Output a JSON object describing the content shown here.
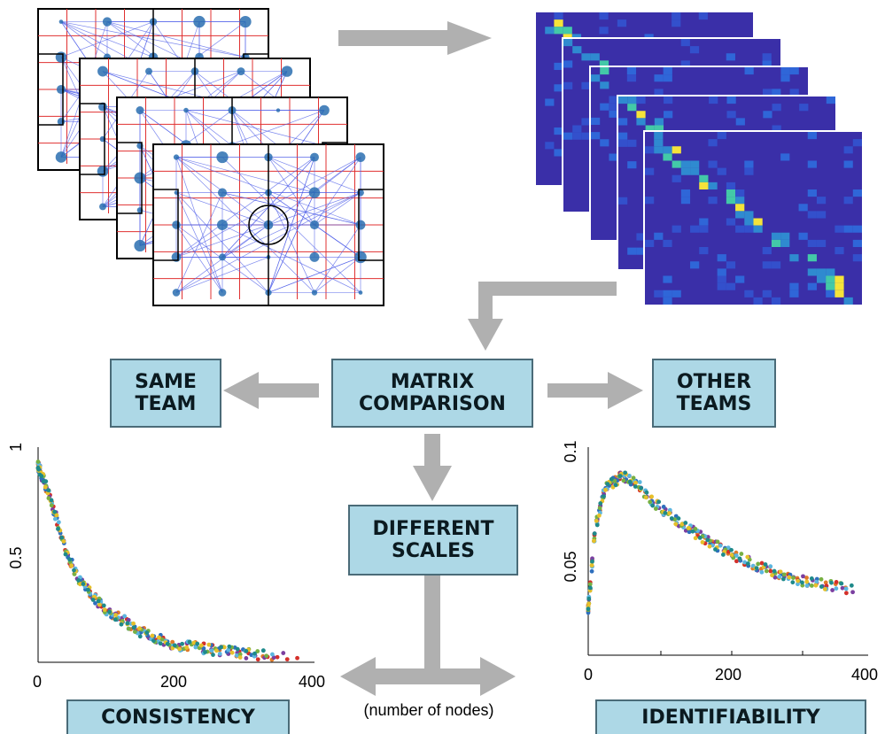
{
  "boxes": {
    "matrix_comparison": [
      "MATRIX",
      "COMPARISON"
    ],
    "same_team": [
      "SAME",
      "TEAM"
    ],
    "other_teams": [
      "OTHER",
      "TEAMS"
    ],
    "different_scales": [
      "DIFFERENT",
      "SCALES"
    ],
    "consistency": "CONSISTENCY",
    "identifiability": "IDENTIFIABILITY"
  },
  "nodes_label": "(number of nodes)",
  "colors": {
    "box_fill": "#add8e6",
    "arrow": "#b0b0b0",
    "network_edge": "#4f5fe8",
    "grid_red": "#e03030",
    "heat_background": "#3a2fa8",
    "series": [
      "#e07b2a",
      "#d4302a",
      "#7b3fa0",
      "#2e6fbd",
      "#5bb6e0",
      "#77b043",
      "#e6c02a",
      "#1f8a8a"
    ]
  },
  "chart_data": [
    {
      "type": "scatter",
      "name": "consistency-plot",
      "xlabel": "",
      "ylabel": "",
      "xlim": [
        0,
        400
      ],
      "ylim": [
        0.05,
        1.0
      ],
      "x_ticks": [
        "0",
        "200",
        "400"
      ],
      "y_ticks": [
        "0.5",
        "1"
      ],
      "trend": [
        {
          "x": 0,
          "y": 0.95
        },
        {
          "x": 20,
          "y": 0.78
        },
        {
          "x": 40,
          "y": 0.56
        },
        {
          "x": 60,
          "y": 0.43
        },
        {
          "x": 80,
          "y": 0.35
        },
        {
          "x": 100,
          "y": 0.29
        },
        {
          "x": 150,
          "y": 0.19
        },
        {
          "x": 200,
          "y": 0.13
        },
        {
          "x": 250,
          "y": 0.11
        },
        {
          "x": 300,
          "y": 0.09
        },
        {
          "x": 350,
          "y": 0.08
        },
        {
          "x": 400,
          "y": 0.07
        }
      ]
    },
    {
      "type": "scatter",
      "name": "identifiability-plot",
      "xlabel": "",
      "ylabel": "",
      "xlim": [
        0,
        400
      ],
      "ylim": [
        0.01,
        0.1
      ],
      "x_ticks": [
        "0",
        "200",
        "400"
      ],
      "y_ticks": [
        "0.05",
        "0.1"
      ],
      "trend": [
        {
          "x": 0,
          "y": 0.03
        },
        {
          "x": 10,
          "y": 0.065
        },
        {
          "x": 25,
          "y": 0.083
        },
        {
          "x": 50,
          "y": 0.088
        },
        {
          "x": 75,
          "y": 0.083
        },
        {
          "x": 100,
          "y": 0.075
        },
        {
          "x": 150,
          "y": 0.064
        },
        {
          "x": 200,
          "y": 0.055
        },
        {
          "x": 250,
          "y": 0.048
        },
        {
          "x": 300,
          "y": 0.043
        },
        {
          "x": 350,
          "y": 0.04
        },
        {
          "x": 390,
          "y": 0.038
        }
      ]
    }
  ]
}
